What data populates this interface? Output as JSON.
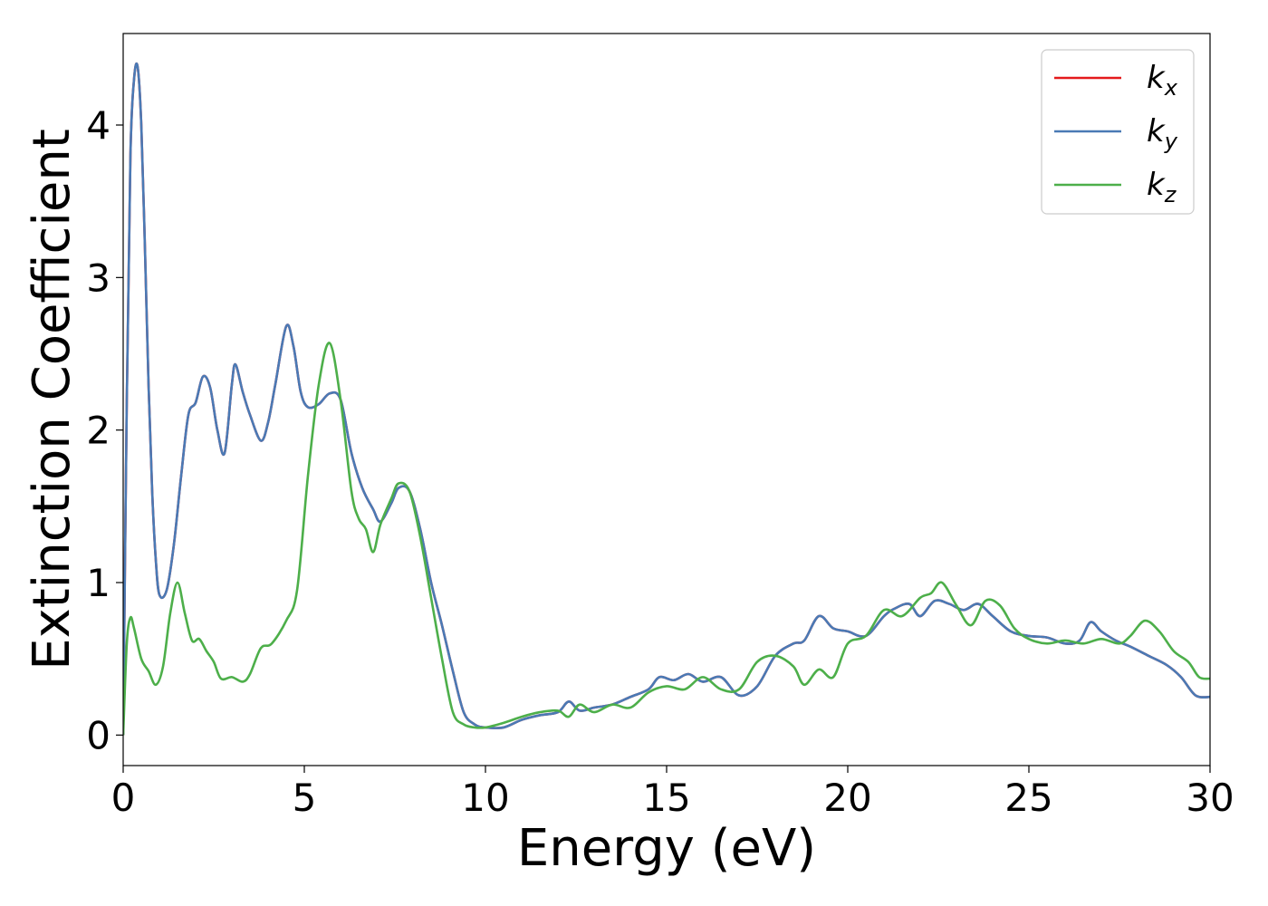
{
  "chart_data": {
    "type": "line",
    "xlabel": "Energy (eV)",
    "ylabel": "Extinction Coefficient",
    "xlim": [
      0,
      30
    ],
    "ylim": [
      -0.2,
      4.6
    ],
    "xticks": [
      0,
      5,
      10,
      15,
      20,
      25,
      30
    ],
    "xtick_labels": [
      "0",
      "5",
      "10",
      "15",
      "20",
      "25",
      "30"
    ],
    "yticks": [
      0,
      1,
      2,
      3,
      4
    ],
    "ytick_labels": [
      "0",
      "1",
      "2",
      "3",
      "4"
    ],
    "grid": false,
    "legend_position": "top-right",
    "series": [
      {
        "name": "k_x",
        "label_main": "k",
        "label_sub": "x",
        "color": "#e41a1c",
        "x": [
          0,
          0.1,
          0.2,
          0.3,
          0.4,
          0.5,
          0.6,
          0.7,
          0.8,
          0.9,
          1.0,
          1.2,
          1.4,
          1.6,
          1.8,
          2.0,
          2.2,
          2.4,
          2.6,
          2.8,
          3.0,
          3.1,
          3.3,
          3.5,
          3.8,
          4.0,
          4.2,
          4.5,
          4.7,
          4.9,
          5.1,
          5.4,
          5.7,
          6.0,
          6.3,
          6.6,
          6.9,
          7.1,
          7.4,
          7.6,
          7.9,
          8.2,
          8.5,
          8.8,
          9.1,
          9.4,
          9.7,
          10.0,
          10.5,
          11.0,
          11.5,
          12.0,
          12.3,
          12.6,
          13.0,
          13.5,
          14.0,
          14.5,
          14.8,
          15.2,
          15.6,
          16.0,
          16.5,
          17.0,
          17.5,
          18.0,
          18.5,
          18.8,
          19.2,
          19.6,
          20.0,
          20.5,
          21.0,
          21.3,
          21.7,
          22.0,
          22.4,
          22.8,
          23.2,
          23.6,
          24.0,
          24.5,
          25.0,
          25.5,
          26.0,
          26.4,
          26.7,
          27.0,
          27.4,
          27.8,
          28.3,
          28.8,
          29.2,
          29.6,
          30.0
        ],
        "y": [
          0.0,
          2.2,
          3.8,
          4.3,
          4.38,
          4.0,
          3.2,
          2.3,
          1.6,
          1.15,
          0.92,
          0.95,
          1.25,
          1.7,
          2.1,
          2.18,
          2.35,
          2.28,
          2.0,
          1.85,
          2.3,
          2.43,
          2.25,
          2.1,
          1.93,
          2.05,
          2.3,
          2.68,
          2.55,
          2.25,
          2.15,
          2.17,
          2.24,
          2.2,
          1.85,
          1.62,
          1.48,
          1.4,
          1.52,
          1.62,
          1.6,
          1.35,
          1.0,
          0.72,
          0.42,
          0.15,
          0.07,
          0.05,
          0.05,
          0.1,
          0.13,
          0.15,
          0.22,
          0.16,
          0.18,
          0.2,
          0.25,
          0.3,
          0.38,
          0.36,
          0.4,
          0.35,
          0.38,
          0.26,
          0.32,
          0.52,
          0.6,
          0.62,
          0.78,
          0.7,
          0.68,
          0.65,
          0.78,
          0.83,
          0.86,
          0.78,
          0.88,
          0.86,
          0.82,
          0.86,
          0.78,
          0.68,
          0.65,
          0.64,
          0.6,
          0.62,
          0.74,
          0.68,
          0.62,
          0.58,
          0.52,
          0.46,
          0.38,
          0.26,
          0.25
        ]
      },
      {
        "name": "k_y",
        "label_main": "k",
        "label_sub": "y",
        "color": "#4a7ab5",
        "x": [
          0,
          0.1,
          0.2,
          0.3,
          0.4,
          0.5,
          0.6,
          0.7,
          0.8,
          0.9,
          1.0,
          1.2,
          1.4,
          1.6,
          1.8,
          2.0,
          2.2,
          2.4,
          2.6,
          2.8,
          3.0,
          3.1,
          3.3,
          3.5,
          3.8,
          4.0,
          4.2,
          4.5,
          4.7,
          4.9,
          5.1,
          5.4,
          5.7,
          6.0,
          6.3,
          6.6,
          6.9,
          7.1,
          7.4,
          7.6,
          7.9,
          8.2,
          8.5,
          8.8,
          9.1,
          9.4,
          9.7,
          10.0,
          10.5,
          11.0,
          11.5,
          12.0,
          12.3,
          12.6,
          13.0,
          13.5,
          14.0,
          14.5,
          14.8,
          15.2,
          15.6,
          16.0,
          16.5,
          17.0,
          17.5,
          18.0,
          18.5,
          18.8,
          19.2,
          19.6,
          20.0,
          20.5,
          21.0,
          21.3,
          21.7,
          22.0,
          22.4,
          22.8,
          23.2,
          23.6,
          24.0,
          24.5,
          25.0,
          25.5,
          26.0,
          26.4,
          26.7,
          27.0,
          27.4,
          27.8,
          28.3,
          28.8,
          29.2,
          29.6,
          30.0
        ],
        "y": [
          0.0,
          2.2,
          3.8,
          4.3,
          4.38,
          4.0,
          3.2,
          2.3,
          1.6,
          1.15,
          0.92,
          0.95,
          1.25,
          1.7,
          2.1,
          2.18,
          2.35,
          2.28,
          2.0,
          1.85,
          2.3,
          2.43,
          2.25,
          2.1,
          1.93,
          2.05,
          2.3,
          2.68,
          2.55,
          2.25,
          2.15,
          2.17,
          2.24,
          2.2,
          1.85,
          1.62,
          1.48,
          1.4,
          1.52,
          1.62,
          1.6,
          1.35,
          1.0,
          0.72,
          0.42,
          0.15,
          0.07,
          0.05,
          0.05,
          0.1,
          0.13,
          0.15,
          0.22,
          0.16,
          0.18,
          0.2,
          0.25,
          0.3,
          0.38,
          0.36,
          0.4,
          0.35,
          0.38,
          0.26,
          0.32,
          0.52,
          0.6,
          0.62,
          0.78,
          0.7,
          0.68,
          0.65,
          0.78,
          0.83,
          0.86,
          0.78,
          0.88,
          0.86,
          0.82,
          0.86,
          0.78,
          0.68,
          0.65,
          0.64,
          0.6,
          0.62,
          0.74,
          0.68,
          0.62,
          0.58,
          0.52,
          0.46,
          0.38,
          0.26,
          0.25
        ]
      },
      {
        "name": "k_z",
        "label_main": "k",
        "label_sub": "z",
        "color": "#4daf4a",
        "x": [
          0,
          0.1,
          0.2,
          0.3,
          0.5,
          0.7,
          0.9,
          1.1,
          1.3,
          1.5,
          1.7,
          1.9,
          2.1,
          2.3,
          2.5,
          2.7,
          3.0,
          3.3,
          3.5,
          3.8,
          4.1,
          4.5,
          4.8,
          5.1,
          5.4,
          5.7,
          6.0,
          6.3,
          6.5,
          6.7,
          6.9,
          7.1,
          7.4,
          7.6,
          7.9,
          8.2,
          8.5,
          8.8,
          9.1,
          9.4,
          9.7,
          10.0,
          10.5,
          11.0,
          11.5,
          12.0,
          12.3,
          12.6,
          13.0,
          13.5,
          14.0,
          14.5,
          15.0,
          15.5,
          16.0,
          16.5,
          17.0,
          17.5,
          18.0,
          18.5,
          18.8,
          19.2,
          19.6,
          20.0,
          20.5,
          21.0,
          21.5,
          22.0,
          22.3,
          22.6,
          23.0,
          23.4,
          23.8,
          24.2,
          24.6,
          25.0,
          25.5,
          26.0,
          26.5,
          27.0,
          27.5,
          27.8,
          28.2,
          28.6,
          29.0,
          29.4,
          29.7,
          30.0
        ],
        "y": [
          0.0,
          0.6,
          0.77,
          0.7,
          0.5,
          0.42,
          0.33,
          0.45,
          0.8,
          1.0,
          0.8,
          0.62,
          0.63,
          0.55,
          0.48,
          0.37,
          0.38,
          0.35,
          0.4,
          0.57,
          0.6,
          0.75,
          0.95,
          1.7,
          2.3,
          2.57,
          2.2,
          1.6,
          1.42,
          1.35,
          1.2,
          1.38,
          1.55,
          1.65,
          1.6,
          1.3,
          0.9,
          0.5,
          0.15,
          0.07,
          0.05,
          0.05,
          0.08,
          0.12,
          0.15,
          0.16,
          0.12,
          0.2,
          0.15,
          0.2,
          0.18,
          0.28,
          0.32,
          0.3,
          0.38,
          0.3,
          0.3,
          0.48,
          0.52,
          0.45,
          0.33,
          0.43,
          0.38,
          0.6,
          0.65,
          0.82,
          0.78,
          0.9,
          0.93,
          1.0,
          0.85,
          0.72,
          0.88,
          0.85,
          0.7,
          0.63,
          0.6,
          0.62,
          0.6,
          0.63,
          0.6,
          0.65,
          0.75,
          0.68,
          0.55,
          0.48,
          0.38,
          0.37
        ]
      }
    ]
  }
}
